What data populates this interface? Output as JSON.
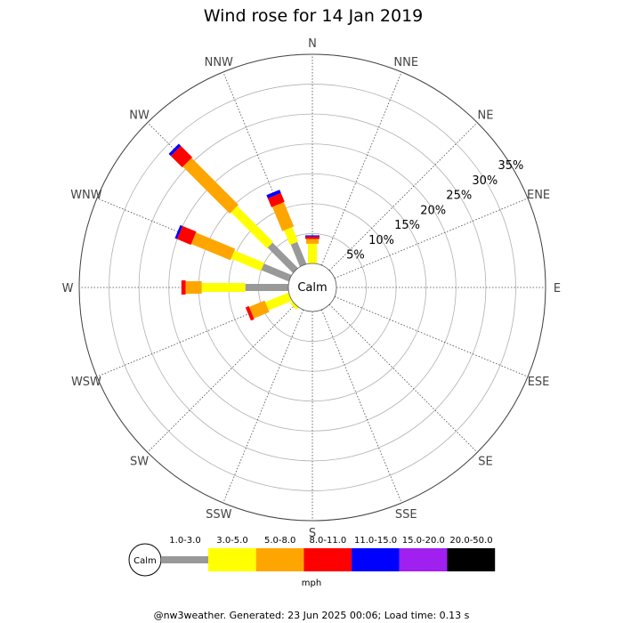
{
  "chart_data": {
    "type": "wind-rose",
    "title": "Wind rose for 14 Jan 2019",
    "directions": [
      "N",
      "NNE",
      "NE",
      "ENE",
      "E",
      "ESE",
      "SE",
      "SSE",
      "S",
      "SSW",
      "SW",
      "WSW",
      "W",
      "WNW",
      "NW",
      "NNW"
    ],
    "radial_ticks": [
      5,
      10,
      15,
      20,
      25,
      30,
      35
    ],
    "radial_tick_labels": [
      "5%",
      "10%",
      "15%",
      "20%",
      "25%",
      "30%",
      "35%"
    ],
    "rmax_percent": 35,
    "calm_label": "Calm",
    "speed_unit": "mph",
    "speed_bins": [
      {
        "label": "1.0-3.0",
        "color": "#999999"
      },
      {
        "label": "3.0-5.0",
        "color": "#ffff00"
      },
      {
        "label": "5.0-8.0",
        "color": "#ffa500"
      },
      {
        "label": "8.0-11.0",
        "color": "#ff0000"
      },
      {
        "label": "11.0-15.0",
        "color": "#0000ff"
      },
      {
        "label": "15.0-20.0",
        "color": "#a020f0"
      },
      {
        "label": "20.0-50.0",
        "color": "#000000"
      }
    ],
    "series": [
      {
        "direction": "N",
        "cumulative": [
          0,
          3.3,
          4.1,
          4.5,
          4.7,
          4.7,
          4.7
        ]
      },
      {
        "direction": "NNW",
        "cumulative": [
          4.0,
          6.6,
          11.0,
          12.6,
          13.2,
          13.2,
          13.2
        ]
      },
      {
        "direction": "NW",
        "cumulative": [
          6.0,
          14.5,
          25.6,
          28.3,
          28.8,
          28.8,
          28.8
        ]
      },
      {
        "direction": "WNW",
        "cumulative": [
          5.0,
          10.4,
          17.5,
          20.0,
          20.4,
          20.4,
          20.4
        ]
      },
      {
        "direction": "W",
        "cumulative": [
          7.2,
          14.5,
          17.2,
          17.9,
          17.9,
          17.9,
          17.9
        ]
      },
      {
        "direction": "WSW",
        "cumulative": [
          0,
          4.2,
          7.0,
          7.6,
          7.6,
          7.6,
          7.6
        ]
      },
      {
        "direction": "SW",
        "cumulative": [
          0,
          0.5,
          0.5,
          0.5,
          0.5,
          0.5,
          0.5
        ]
      }
    ]
  },
  "footer": "@nw3weather. Generated: 23 Jun 2025 00:06; Load time: 0.13 s"
}
